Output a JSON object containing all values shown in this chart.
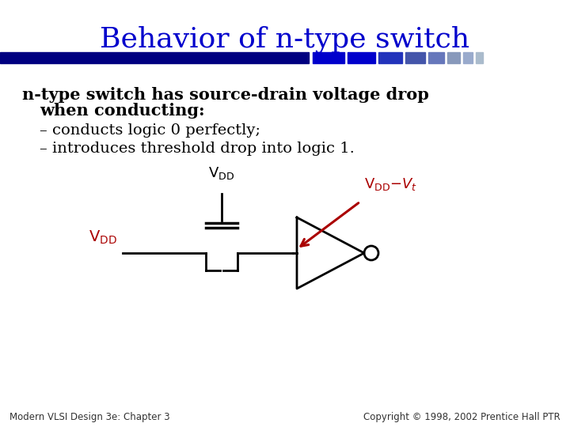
{
  "title": "Behavior of n-type switch",
  "title_color": "#0000CC",
  "title_fontsize": 26,
  "bg_color": "#FFFFFF",
  "body_text1": "n-type switch has source-drain voltage drop",
  "body_text2": "when conducting:",
  "bullet1": "– conducts logic 0 perfectly;",
  "bullet2": "– introduces threshold drop into logic 1.",
  "body_fontsize": 15,
  "bullet_fontsize": 14,
  "footer_left": "Modern VLSI Design 3e: Chapter 3",
  "footer_right": "Copyright © 1998, 2002 Prentice Hall PTR",
  "footer_fontsize": 8.5,
  "bar_dark_color": "#000080",
  "bar_mid_colors": [
    "#0000CC",
    "#0000CC",
    "#2233BB",
    "#4455AA",
    "#6677BB",
    "#8899BB",
    "#99AACC",
    "#AABBCC"
  ],
  "diagram_line_color": "#000000",
  "arrow_color": "#AA0000",
  "red_label_color": "#AA0000",
  "vdd_label_color": "#000000"
}
